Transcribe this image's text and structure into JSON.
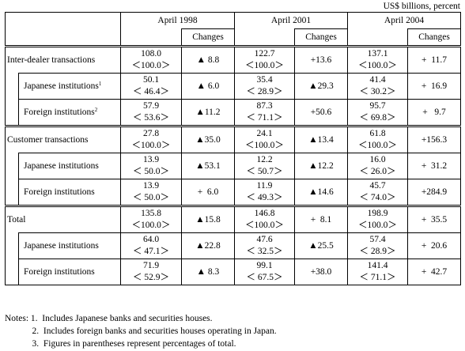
{
  "unit_label": "US$ billions, percent",
  "headers": {
    "years": [
      "April 1998",
      "April 2001",
      "April 2004"
    ],
    "changes": "Changes"
  },
  "groups": [
    {
      "rows": [
        {
          "label": "Inter-dealer transactions",
          "sup": "",
          "values": [
            {
              "amount": "108.0",
              "share": "＜100.0＞",
              "change": "▲ 8.8"
            },
            {
              "amount": "122.7",
              "share": "＜100.0＞",
              "change": "+13.6"
            },
            {
              "amount": "137.1",
              "share": "＜100.0＞",
              "change": "+  11.7"
            }
          ]
        },
        {
          "label": "Japanese institutions",
          "sup": "1",
          "values": [
            {
              "amount": "50.1",
              "share": "＜ 46.4＞",
              "change": "▲ 6.0"
            },
            {
              "amount": "35.4",
              "share": "＜ 28.9＞",
              "change": "▲29.3"
            },
            {
              "amount": "41.4",
              "share": "＜ 30.2＞",
              "change": "+  16.9"
            }
          ]
        },
        {
          "label": "Foreign institutions",
          "sup": "2",
          "values": [
            {
              "amount": "57.9",
              "share": "＜ 53.6＞",
              "change": "▲11.2"
            },
            {
              "amount": "87.3",
              "share": "＜ 71.1＞",
              "change": "+50.6"
            },
            {
              "amount": "95.7",
              "share": "＜ 69.8＞",
              "change": "+   9.7"
            }
          ]
        }
      ]
    },
    {
      "rows": [
        {
          "label": "Customer transactions",
          "sup": "",
          "values": [
            {
              "amount": "27.8",
              "share": "＜100.0＞",
              "change": "▲35.0"
            },
            {
              "amount": "24.1",
              "share": "＜100.0＞",
              "change": "▲13.4"
            },
            {
              "amount": "61.8",
              "share": "＜100.0＞",
              "change": "+156.3"
            }
          ]
        },
        {
          "label": "Japanese institutions",
          "sup": "",
          "values": [
            {
              "amount": "13.9",
              "share": "＜ 50.0＞",
              "change": "▲53.1"
            },
            {
              "amount": "12.2",
              "share": "＜ 50.7＞",
              "change": "▲12.2"
            },
            {
              "amount": "16.0",
              "share": "＜ 26.0＞",
              "change": "+  31.2"
            }
          ]
        },
        {
          "label": "Foreign institutions",
          "sup": "",
          "values": [
            {
              "amount": "13.9",
              "share": "＜ 50.0＞",
              "change": "+  6.0"
            },
            {
              "amount": "11.9",
              "share": "＜ 49.3＞",
              "change": "▲14.6"
            },
            {
              "amount": "45.7",
              "share": "＜ 74.0＞",
              "change": "+284.9"
            }
          ]
        }
      ]
    },
    {
      "rows": [
        {
          "label": "Total",
          "sup": "",
          "values": [
            {
              "amount": "135.8",
              "share": "＜100.0＞",
              "change": "▲15.8"
            },
            {
              "amount": "146.8",
              "share": "＜100.0＞",
              "change": "+  8.1"
            },
            {
              "amount": "198.9",
              "share": "＜100.0＞",
              "change": "+  35.5"
            }
          ]
        },
        {
          "label": "Japanese institutions",
          "sup": "",
          "values": [
            {
              "amount": "64.0",
              "share": "＜ 47.1＞",
              "change": "▲22.8"
            },
            {
              "amount": "47.6",
              "share": "＜ 32.5＞",
              "change": "▲25.5"
            },
            {
              "amount": "57.4",
              "share": "＜ 28.9＞",
              "change": "+  20.6"
            }
          ]
        },
        {
          "label": "Foreign institutions",
          "sup": "",
          "values": [
            {
              "amount": "71.9",
              "share": "＜ 52.9＞",
              "change": "▲ 8.3"
            },
            {
              "amount": "99.1",
              "share": "＜ 67.5＞",
              "change": "+38.0"
            },
            {
              "amount": "141.4",
              "share": "＜ 71.1＞",
              "change": "+  42.7"
            }
          ]
        }
      ]
    }
  ],
  "notes": [
    "Notes: 1.  Includes Japanese banks and securities houses.",
    "            2.  Includes foreign banks and securities houses operating in Japan.",
    "            3.  Figures in parentheses represent percentages of total."
  ]
}
